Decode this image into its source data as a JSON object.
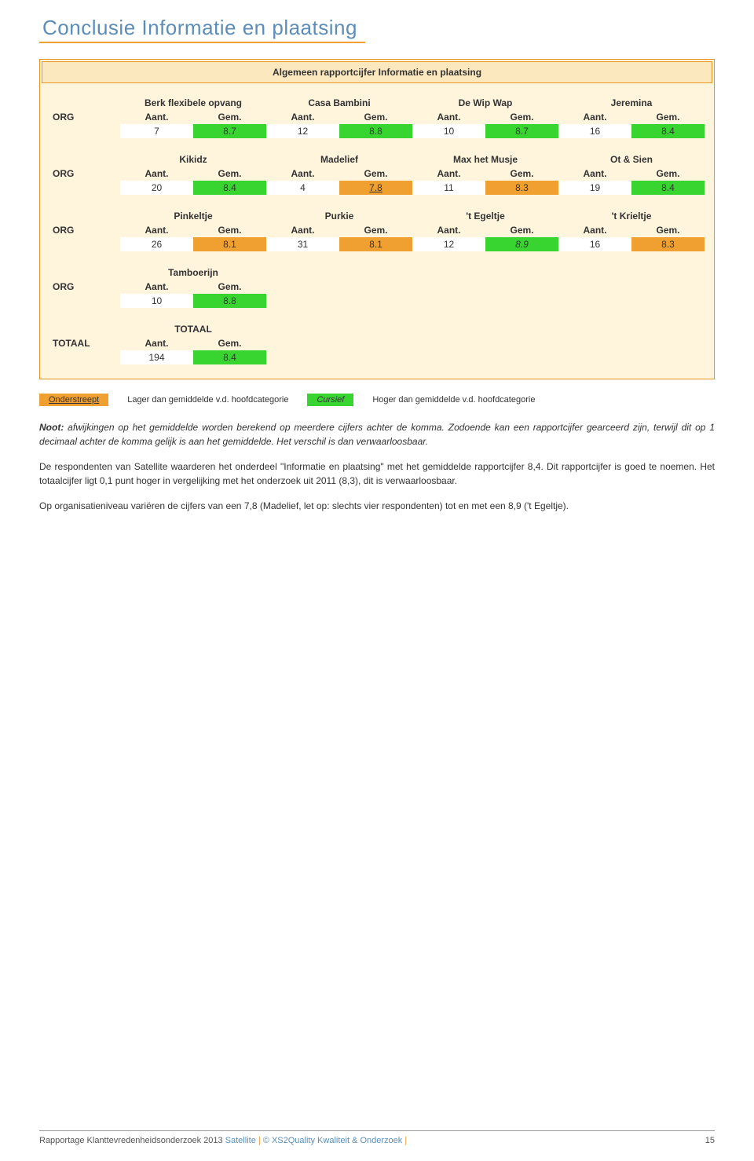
{
  "colors": {
    "title_color": "#5b8db8",
    "accent_orange": "#f0a030",
    "box_border": "#e8941e",
    "box_bg": "#fff5dd",
    "title_box_bg": "#fce8be",
    "green": "#38d430",
    "orange_cell": "#f0a030"
  },
  "page": {
    "title": "Conclusie Informatie en plaatsing"
  },
  "box": {
    "caption": "Algemeen rapportcijfer Informatie en plaatsing"
  },
  "labels": {
    "row_org": "ORG",
    "row_totaal": "TOTAAL",
    "aant": "Aant.",
    "gem": "Gem."
  },
  "rows": {
    "r1": {
      "groups": [
        {
          "name": "Berk flexibele opvang",
          "aant": "7",
          "gem": "8.7",
          "color": "green"
        },
        {
          "name": "Casa Bambini",
          "aant": "12",
          "gem": "8.8",
          "color": "green"
        },
        {
          "name": "De Wip Wap",
          "aant": "10",
          "gem": "8.7",
          "color": "green"
        },
        {
          "name": "Jeremina",
          "aant": "16",
          "gem": "8.4",
          "color": "green"
        }
      ]
    },
    "r2": {
      "groups": [
        {
          "name": "Kikidz",
          "aant": "20",
          "gem": "8.4",
          "color": "green"
        },
        {
          "name": "Madelief",
          "aant": "4",
          "gem": "7.8",
          "color": "orange",
          "underline": true
        },
        {
          "name": "Max het Musje",
          "aant": "11",
          "gem": "8.3",
          "color": "orange"
        },
        {
          "name": "Ot & Sien",
          "aant": "19",
          "gem": "8.4",
          "color": "green"
        }
      ]
    },
    "r3": {
      "groups": [
        {
          "name": "Pinkeltje",
          "aant": "26",
          "gem": "8.1",
          "color": "orange"
        },
        {
          "name": "Purkie",
          "aant": "31",
          "gem": "8.1",
          "color": "orange"
        },
        {
          "name": "'t Egeltje",
          "aant": "12",
          "gem": "8.9",
          "color": "green",
          "italic": true
        },
        {
          "name": "'t Krieltje",
          "aant": "16",
          "gem": "8.3",
          "color": "orange"
        }
      ]
    },
    "r4": {
      "groups": [
        {
          "name": "Tamboerijn",
          "aant": "10",
          "gem": "8.8",
          "color": "green"
        }
      ]
    },
    "totaal": {
      "groups": [
        {
          "name": "TOTAAL",
          "aant": "194",
          "gem": "8.4",
          "color": "green"
        }
      ]
    }
  },
  "legend": {
    "under_label": "Onderstreept",
    "under_text": "Lager dan gemiddelde v.d. hoofdcategorie",
    "cursief_label": "Cursief",
    "cursief_text": "Hoger dan gemiddelde v.d. hoofdcategorie"
  },
  "body": {
    "p1a": "Noot:",
    "p1b": " afwijkingen op het gemiddelde worden berekend op meerdere cijfers achter de komma. Zodoende kan een rapportcijfer gearceerd zijn, terwijl dit op 1 decimaal achter de komma gelijk is aan het gemiddelde. Het verschil is dan verwaarloosbaar.",
    "p2": "De respondenten van Satellite waarderen het onderdeel \"Informatie en plaatsing\" met het gemiddelde rapportcijfer 8,4. Dit rapportcijfer is goed te noemen. Het totaalcijfer ligt 0,1 punt hoger in vergelijking met het onderzoek uit 2011 (8,3), dit is verwaarloosbaar.",
    "p3": "Op organisatieniveau variëren de cijfers van een 7,8 (Madelief, let op: slechts vier respondenten) tot en met een 8,9 ('t Egeltje)."
  },
  "footer": {
    "left_a": "Rapportage Klanttevredenheidsonderzoek 2013 ",
    "left_b": "Satellite",
    "sep": " | ",
    "mid": "© XS2Quality Kwaliteit & Onderzoek",
    "page": "15"
  }
}
